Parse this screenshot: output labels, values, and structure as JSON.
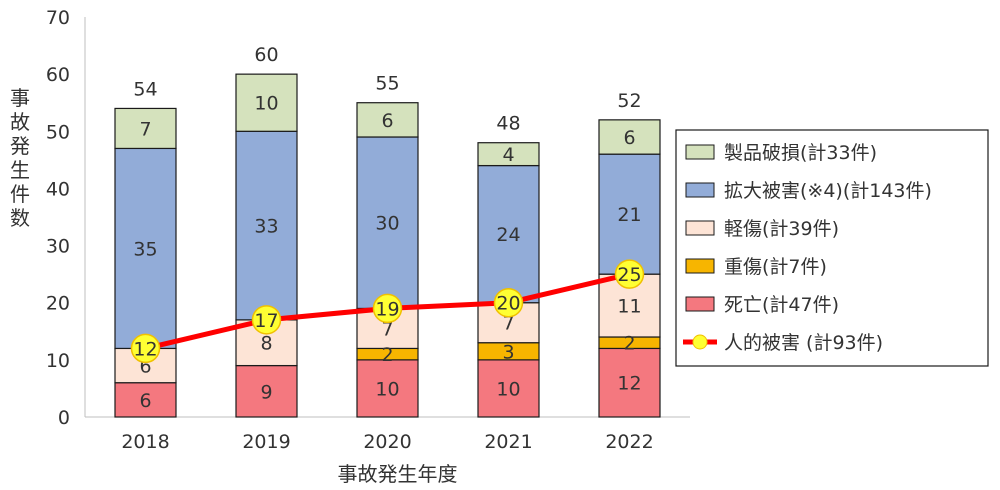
{
  "chart_data": {
    "type": "bar",
    "stacked": true,
    "categories": [
      "2018",
      "2019",
      "2020",
      "2021",
      "2022"
    ],
    "xlabel": "事故発生年度",
    "ylabel": "事故発生件数",
    "ylim": [
      0,
      70
    ],
    "yticks": [
      0,
      10,
      20,
      30,
      40,
      50,
      60,
      70
    ],
    "grid": false,
    "legend_position": "right",
    "series": [
      {
        "name": "死亡(計47件)",
        "values": [
          6,
          9,
          10,
          10,
          12
        ],
        "color": "#f4787f"
      },
      {
        "name": "重傷(計7件)",
        "values": [
          0,
          0,
          2,
          3,
          2
        ],
        "color": "#f7b500"
      },
      {
        "name": "軽傷(計39件)",
        "values": [
          6,
          8,
          7,
          7,
          11
        ],
        "color": "#fde4d6"
      },
      {
        "name": "拡大被害(※4)(計143件)",
        "values": [
          35,
          33,
          30,
          24,
          21
        ],
        "color": "#92acd8"
      },
      {
        "name": "製品破損(計33件)",
        "values": [
          7,
          10,
          6,
          4,
          6
        ],
        "color": "#d5e2bd"
      }
    ],
    "totals": [
      54,
      60,
      55,
      48,
      52
    ],
    "line": {
      "name": "人的被害 (計93件)",
      "values": [
        12,
        17,
        19,
        20,
        25
      ],
      "color": "#ff0000",
      "marker_color": "#ffff33",
      "marker_edge": "#f0c000"
    },
    "legend_order": [
      "製品破損(計33件)",
      "拡大被害(※4)(計143件)",
      "軽傷(計39件)",
      "重傷(計7件)",
      "死亡(計47件)",
      "人的被害 (計93件)"
    ]
  }
}
